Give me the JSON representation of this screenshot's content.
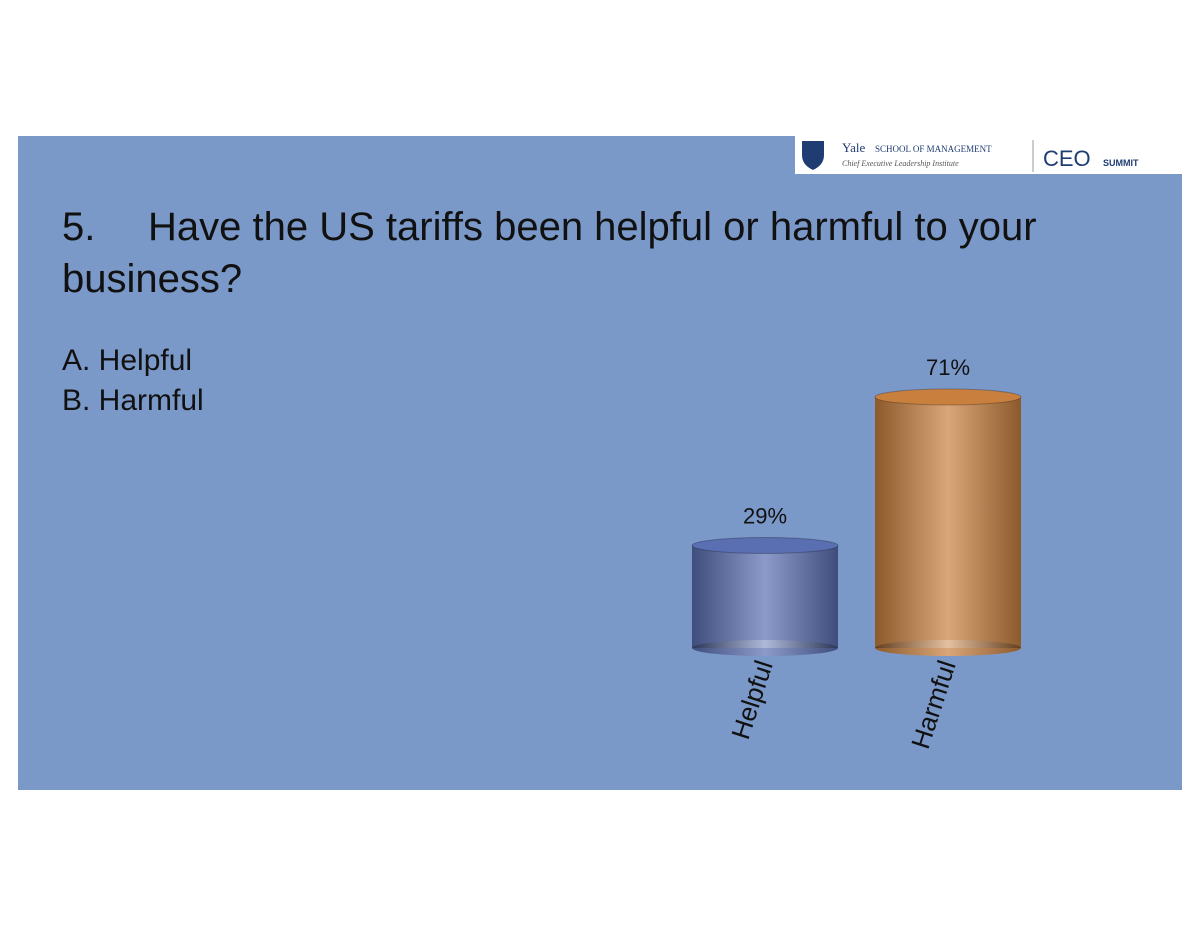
{
  "header": {
    "org": "Yale",
    "school": "SCHOOL OF MANAGEMENT",
    "institute": "Chief Executive Leadership Institute",
    "event": "CEO",
    "event_sub": "SUMMIT"
  },
  "question": {
    "number": "5.",
    "text_line1": "Have the US tariffs been helpful or harmful to your",
    "text_line2": "business?"
  },
  "options": [
    "A.  Helpful",
    "B.  Harmful"
  ],
  "chart_data": {
    "type": "bar",
    "categories": [
      "Helpful",
      "Harmful"
    ],
    "values": [
      29,
      71
    ],
    "value_labels": [
      "29%",
      "71%"
    ],
    "colors": [
      "#5a6fb2",
      "#c9803f"
    ]
  }
}
